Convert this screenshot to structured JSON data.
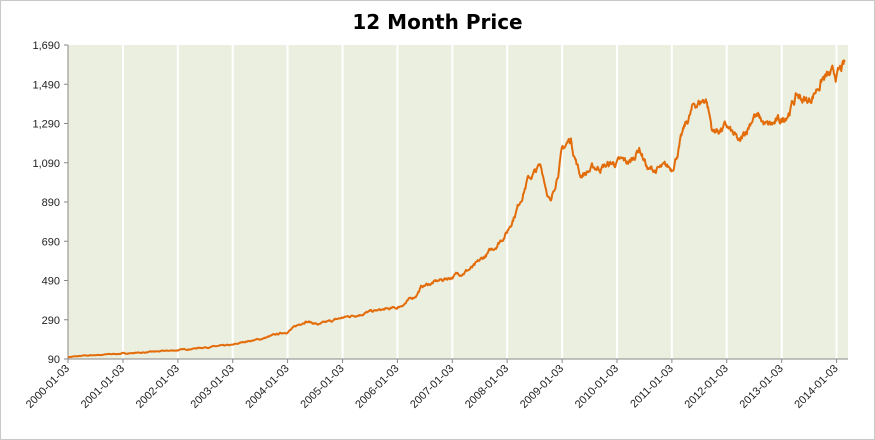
{
  "chart_data": {
    "type": "line",
    "title": "12 Month Price",
    "xlabel": "",
    "ylabel": "",
    "ylim": [
      90,
      1690
    ],
    "y_ticks": [
      "1,690",
      "1,490",
      "1,290",
      "1,090",
      "890",
      "690",
      "490",
      "290",
      "90"
    ],
    "y_tick_values": [
      1690,
      1490,
      1290,
      1090,
      890,
      690,
      490,
      290,
      90
    ],
    "x_ticks": [
      "2000-01-03",
      "2001-01-03",
      "2002-01-03",
      "2003-01-03",
      "2004-01-03",
      "2005-01-03",
      "2006-01-03",
      "2007-01-03",
      "2008-01-03",
      "2009-01-03",
      "2010-01-03",
      "2011-01-03",
      "2012-01-03",
      "2013-01-03",
      "2014-01-03"
    ],
    "grid": "vertical",
    "legend": "none",
    "colors": {
      "line": "#E36C0A",
      "plot_bg": "#EBEFE0",
      "grid": "#FFFFFF"
    },
    "series": [
      {
        "name": "",
        "x": [
          "2000-01-03",
          "2000-07-01",
          "2001-01-03",
          "2001-07-01",
          "2002-01-03",
          "2002-07-01",
          "2003-01-03",
          "2003-04-01",
          "2003-07-01",
          "2004-01-03",
          "2004-05-01",
          "2004-08-01",
          "2005-01-03",
          "2005-07-01",
          "2006-01-03",
          "2006-05-01",
          "2006-06-15",
          "2007-01-03",
          "2007-06-01",
          "2007-10-01",
          "2008-01-03",
          "2008-03-15",
          "2008-05-15",
          "2008-08-15",
          "2008-10-20",
          "2009-01-03",
          "2009-03-01",
          "2009-05-01",
          "2009-08-01",
          "2010-01-03",
          "2010-04-01",
          "2010-06-01",
          "2010-08-01",
          "2011-01-03",
          "2011-04-01",
          "2011-06-01",
          "2011-08-20",
          "2011-10-01",
          "2012-01-03",
          "2012-04-01",
          "2012-07-01",
          "2012-10-01",
          "2013-01-03",
          "2013-04-15",
          "2013-07-01",
          "2013-10-01",
          "2014-01-03",
          "2014-03-01"
        ],
        "values": [
          100,
          110,
          118,
          125,
          135,
          150,
          160,
          180,
          190,
          230,
          285,
          265,
          300,
          330,
          350,
          410,
          460,
          510,
          560,
          650,
          740,
          870,
          1000,
          1070,
          880,
          1150,
          1210,
          1030,
          1060,
          1090,
          1090,
          1170,
          1050,
          1060,
          1270,
          1380,
          1420,
          1250,
          1270,
          1180,
          1340,
          1270,
          1300,
          1430,
          1400,
          1520,
          1530,
          1580
        ]
      }
    ]
  }
}
